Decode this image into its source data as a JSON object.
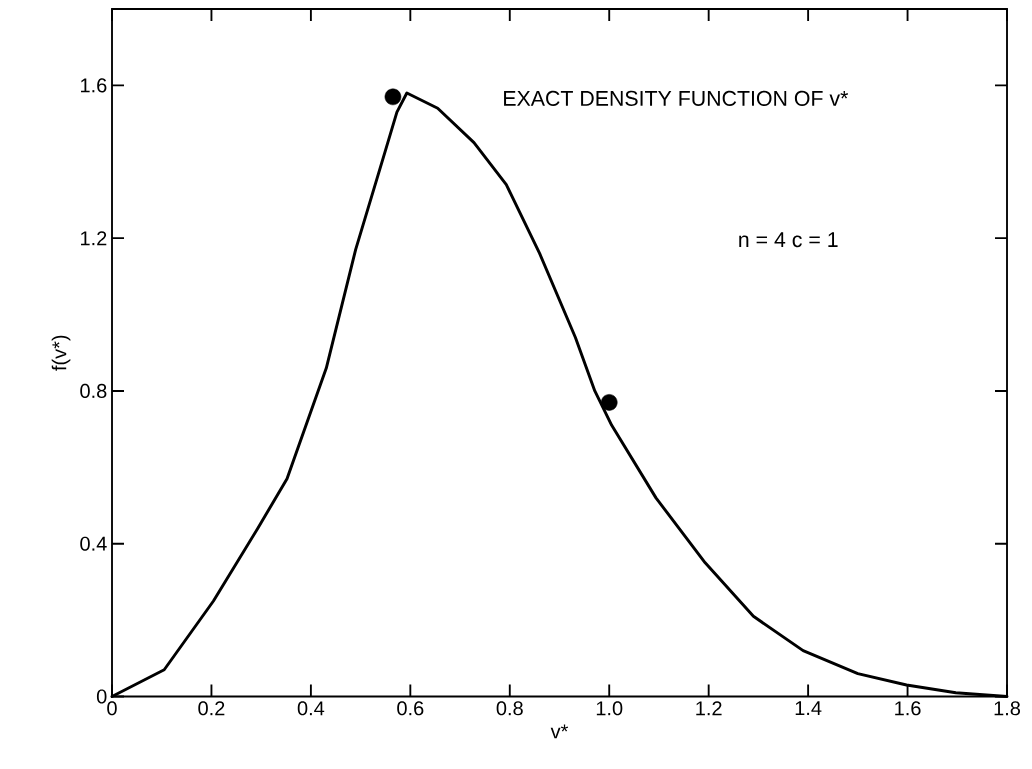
{
  "chart_data": {
    "type": "line",
    "title": "EXACT DENSITY FUNCTION OF v*",
    "xlabel": "v*",
    "ylabel": "f(v*)",
    "annotations": [
      "n = 4      c = 1"
    ],
    "xlim": [
      0,
      1.8
    ],
    "ylim": [
      0,
      1.8
    ],
    "xticks": [
      0,
      0.2,
      0.4,
      0.6,
      0.8,
      {
        "value": 1,
        "label": "1.0"
      },
      1.2,
      1.4,
      1.6,
      1.8
    ],
    "yticks": [
      0,
      0.4,
      0.8,
      1.2,
      1.6
    ],
    "grid": false,
    "line_style": "solid",
    "series": [
      {
        "color": "#000000",
        "marker": "none",
        "x": [
          0,
          0.105,
          0.204,
          0.293,
          0.352,
          0.431,
          0.49,
          0.55,
          0.573,
          0.593,
          0.655,
          0.728,
          0.793,
          0.86,
          0.932,
          0.971,
          1.005,
          1.094,
          1.193,
          1.29,
          1.39,
          1.5,
          1.598,
          1.697,
          1.8
        ],
        "values": [
          0,
          0.07,
          0.25,
          0.44,
          0.57,
          0.86,
          1.17,
          1.43,
          1.53,
          1.58,
          1.54,
          1.45,
          1.34,
          1.16,
          0.94,
          0.8,
          0.71,
          0.52,
          0.35,
          0.21,
          0.12,
          0.06,
          0.03,
          0.01,
          0
        ]
      },
      {
        "type": "scatter",
        "color": "#000000",
        "marker": "circle",
        "x": [
          0.565,
          1.0
        ],
        "values": [
          1.57,
          0.77
        ]
      }
    ]
  }
}
